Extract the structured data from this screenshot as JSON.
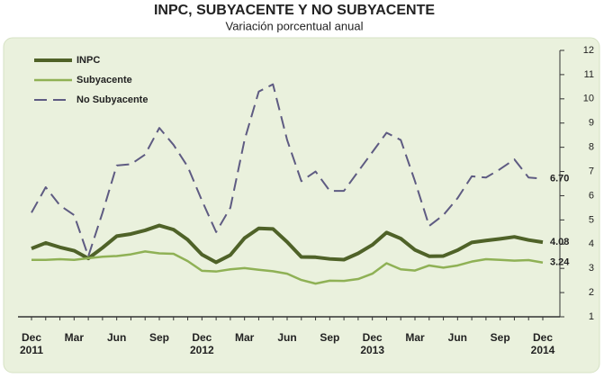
{
  "chart_data": {
    "type": "line",
    "title": "INPC, SUBYACENTE Y NO SUBYACENTE",
    "subtitle": "Variación porcentual anual",
    "categories": [
      "Dec",
      null,
      null,
      "Mar",
      null,
      null,
      "Jun",
      null,
      null,
      "Sep",
      null,
      null,
      "Dec",
      null,
      null,
      "Mar",
      null,
      null,
      "Jun",
      null,
      null,
      "Sep",
      null,
      null,
      "Dec",
      null,
      null,
      "Mar",
      null,
      null,
      "Jun",
      null,
      null,
      "Sep",
      null,
      null,
      "Dec"
    ],
    "years": [
      "2011",
      null,
      null,
      null,
      null,
      null,
      null,
      null,
      null,
      null,
      null,
      null,
      "2012",
      null,
      null,
      null,
      null,
      null,
      null,
      null,
      null,
      null,
      null,
      null,
      "2013",
      null,
      null,
      null,
      null,
      null,
      null,
      null,
      null,
      null,
      null,
      null,
      "2014"
    ],
    "ylim": [
      1,
      12
    ],
    "yticks": [
      1,
      2,
      3,
      4,
      5,
      6,
      7,
      8,
      9,
      10,
      11,
      12
    ],
    "y_axis_side": "right",
    "grid": false,
    "legend": "top-left",
    "series": [
      {
        "name": "INPC",
        "color": "#4f6228",
        "width": 4,
        "dashed": false,
        "values": [
          3.82,
          4.05,
          3.87,
          3.73,
          3.41,
          3.85,
          4.33,
          4.42,
          4.57,
          4.77,
          4.6,
          4.18,
          3.57,
          3.25,
          3.55,
          4.25,
          4.65,
          4.63,
          4.09,
          3.47,
          3.46,
          3.39,
          3.36,
          3.62,
          3.97,
          4.48,
          4.23,
          3.76,
          3.5,
          3.51,
          3.75,
          4.07,
          4.15,
          4.22,
          4.3,
          4.17,
          4.08
        ],
        "value_labels": [
          null,
          null,
          null,
          null,
          null,
          null,
          null,
          null,
          null,
          null,
          null,
          null,
          null,
          null,
          null,
          null,
          null,
          null,
          null,
          null,
          null,
          null,
          null,
          null,
          null,
          null,
          null,
          null,
          null,
          null,
          null,
          null,
          null,
          null,
          null,
          null,
          "4.08"
        ]
      },
      {
        "name": "Subyacente",
        "color": "#8fb155",
        "width": 2.5,
        "dashed": false,
        "values": [
          3.35,
          3.35,
          3.38,
          3.35,
          3.42,
          3.48,
          3.51,
          3.58,
          3.7,
          3.62,
          3.6,
          3.3,
          2.9,
          2.87,
          2.96,
          3.01,
          2.94,
          2.88,
          2.78,
          2.52,
          2.37,
          2.49,
          2.48,
          2.56,
          2.78,
          3.21,
          2.96,
          2.91,
          3.12,
          3.03,
          3.12,
          3.28,
          3.38,
          3.35,
          3.32,
          3.34,
          3.24
        ],
        "value_labels": [
          null,
          null,
          null,
          null,
          null,
          null,
          null,
          null,
          null,
          null,
          null,
          null,
          null,
          null,
          null,
          null,
          null,
          null,
          null,
          null,
          null,
          null,
          null,
          null,
          null,
          null,
          null,
          null,
          null,
          null,
          null,
          null,
          null,
          null,
          null,
          null,
          "3.24"
        ]
      },
      {
        "name": "No Subyacente",
        "color": "#5e5b82",
        "width": 2,
        "dashed": true,
        "values": [
          5.3,
          6.35,
          5.6,
          5.2,
          3.5,
          5.3,
          7.25,
          7.3,
          7.7,
          8.8,
          8.1,
          7.2,
          5.8,
          4.5,
          5.5,
          8.3,
          10.3,
          10.6,
          8.3,
          6.6,
          7.0,
          6.2,
          6.2,
          7.0,
          7.8,
          8.6,
          8.3,
          6.6,
          4.75,
          5.2,
          5.9,
          6.8,
          6.75,
          7.1,
          7.5,
          6.75,
          6.7
        ],
        "value_labels": [
          null,
          null,
          null,
          null,
          null,
          null,
          null,
          null,
          null,
          null,
          null,
          null,
          null,
          null,
          null,
          null,
          null,
          null,
          null,
          null,
          null,
          null,
          null,
          null,
          null,
          null,
          null,
          null,
          null,
          null,
          null,
          null,
          null,
          null,
          null,
          null,
          "6.70"
        ]
      }
    ]
  }
}
